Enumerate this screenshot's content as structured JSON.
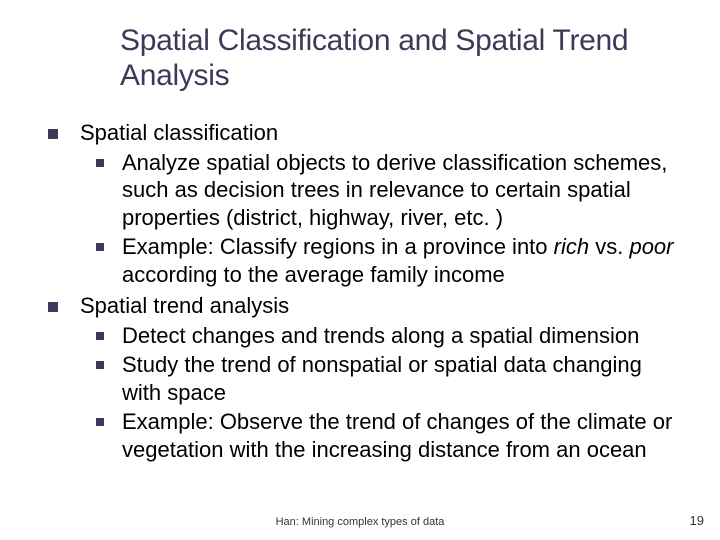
{
  "title": "Spatial Classification and Spatial Trend Analysis",
  "bullets": [
    {
      "text": "Spatial classification",
      "children": [
        {
          "text": "Analyze spatial objects to derive classification schemes, such as decision trees in relevance to certain spatial properties (district, highway, river, etc. )"
        },
        {
          "prefix": "Example: Classify regions in a province into ",
          "i1": "rich",
          "mid": " vs. ",
          "i2": "poor",
          "suffix": " according to the average family income"
        }
      ]
    },
    {
      "text": "Spatial trend analysis",
      "children": [
        {
          "text": "Detect changes and trends along a spatial dimension"
        },
        {
          "text": "Study the trend of nonspatial or spatial data changing with space"
        },
        {
          "text": "Example: Observe the trend of changes of the climate or vegetation with the increasing distance from an ocean"
        }
      ]
    }
  ],
  "footer": "Han: Mining complex types of data",
  "page": "19",
  "colors": {
    "title": "#3a3a5a",
    "bullet": "#3a3a5a",
    "background": "#ffffff"
  },
  "typography": {
    "title_fontsize": 30,
    "body_fontsize": 22,
    "footer_fontsize": 11,
    "font_family": "Verdana"
  }
}
